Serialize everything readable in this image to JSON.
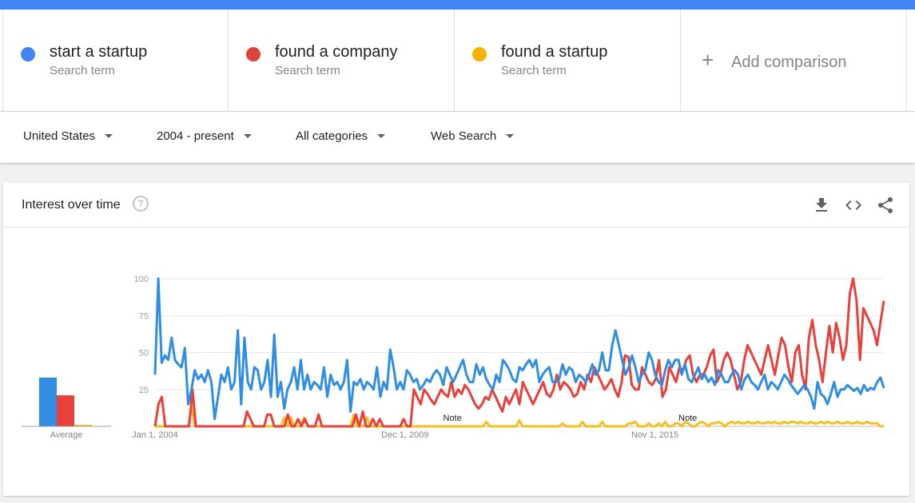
{
  "colors": {
    "blue": "#4285f4",
    "red": "#db4437",
    "yellow": "#f4b400",
    "line_blue": "#2f8de4",
    "line_red": "#e8403a",
    "line_yellow": "#f6be1e"
  },
  "terms": [
    {
      "name": "start a startup",
      "sub": "Search term",
      "color": "#4285f4"
    },
    {
      "name": "found a company",
      "sub": "Search term",
      "color": "#db4437"
    },
    {
      "name": "found a startup",
      "sub": "Search term",
      "color": "#f4b400"
    }
  ],
  "add_comparison": "Add comparison",
  "filters": {
    "region": "United States",
    "time": "2004 - present",
    "category": "All categories",
    "search_type": "Web Search"
  },
  "card": {
    "title": "Interest over time",
    "help_icon": "help-circle-icon",
    "download_icon": "download-icon",
    "embed_icon": "embed-code-icon",
    "share_icon": "share-icon"
  },
  "chart_data": {
    "type": "line",
    "y_ticks": [
      "100",
      "75",
      "50",
      "25"
    ],
    "ylim": [
      0,
      100
    ],
    "x_tick_labels": [
      "Jan 1, 2004",
      "Dec 1, 2009",
      "Nov 1, 2015"
    ],
    "notes": [
      "Note",
      "Note"
    ],
    "average_label": "Average",
    "averages": [
      {
        "name": "start a startup",
        "value": 33
      },
      {
        "name": "found a company",
        "value": 21
      },
      {
        "name": "found a startup",
        "value": 1
      }
    ],
    "series": [
      {
        "name": "start a startup",
        "values": [
          35,
          100,
          43,
          48,
          45,
          60,
          45,
          42,
          40,
          53,
          15,
          25,
          38,
          32,
          35,
          30,
          38,
          30,
          5,
          20,
          35,
          30,
          40,
          25,
          30,
          65,
          15,
          60,
          30,
          25,
          40,
          38,
          25,
          30,
          45,
          20,
          62,
          20,
          30,
          12,
          25,
          30,
          40,
          25,
          45,
          25,
          35,
          25,
          30,
          28,
          25,
          40,
          20,
          35,
          28,
          30,
          25,
          30,
          45,
          10,
          30,
          28,
          32,
          25,
          30,
          28,
          25,
          40,
          20,
          30,
          25,
          52,
          40,
          25,
          30,
          25,
          38,
          35,
          30,
          32,
          25,
          28,
          32,
          30,
          35,
          38,
          35,
          28,
          40,
          35,
          30,
          35,
          40,
          45,
          35,
          30,
          30,
          42,
          35,
          40,
          32,
          28,
          25,
          35,
          30,
          45,
          42,
          38,
          32,
          30,
          40,
          38,
          42,
          45,
          40,
          45,
          30,
          35,
          38,
          40,
          30,
          30,
          32,
          42,
          35,
          40,
          38,
          30,
          35,
          33,
          30,
          35,
          42,
          35,
          38,
          50,
          38,
          38,
          55,
          65,
          55,
          45,
          35,
          40,
          48,
          40,
          30,
          35,
          38,
          50,
          45,
          35,
          30,
          28,
          38,
          45,
          40,
          45,
          45,
          35,
          42,
          32,
          30,
          35,
          40,
          32,
          35,
          30,
          33,
          28,
          38,
          35,
          30,
          30,
          35,
          38,
          35,
          25,
          32,
          35,
          30,
          28,
          25,
          30,
          35,
          25,
          30,
          28,
          25,
          30,
          35,
          32,
          28,
          25,
          22,
          25,
          28,
          25,
          20,
          12,
          30,
          22,
          20,
          15,
          22,
          30,
          20,
          25,
          25,
          28,
          26,
          24,
          26,
          22,
          28,
          24,
          26,
          25,
          30,
          33,
          26
        ]
      },
      {
        "name": "found a company",
        "values": [
          0,
          15,
          20,
          0,
          0,
          0,
          0,
          0,
          0,
          0,
          0,
          25,
          0,
          0,
          0,
          0,
          0,
          0,
          0,
          0,
          0,
          0,
          0,
          0,
          0,
          0,
          0,
          10,
          5,
          0,
          0,
          0,
          0,
          8,
          8,
          0,
          0,
          0,
          0,
          8,
          0,
          0,
          5,
          0,
          5,
          0,
          0,
          0,
          8,
          0,
          0,
          0,
          0,
          0,
          0,
          0,
          0,
          0,
          0,
          8,
          0,
          10,
          0,
          0,
          5,
          0,
          5,
          0,
          0,
          0,
          0,
          0,
          0,
          5,
          0,
          0,
          25,
          20,
          15,
          25,
          22,
          18,
          15,
          20,
          25,
          22,
          20,
          30,
          20,
          25,
          22,
          28,
          25,
          20,
          15,
          12,
          15,
          20,
          18,
          25,
          20,
          15,
          10,
          20,
          15,
          20,
          25,
          15,
          30,
          25,
          20,
          15,
          20,
          25,
          30,
          22,
          20,
          25,
          35,
          25,
          30,
          28,
          25,
          20,
          22,
          30,
          25,
          35,
          30,
          40,
          35,
          30,
          25,
          28,
          32,
          25,
          20,
          30,
          48,
          47,
          28,
          25,
          25,
          40,
          35,
          30,
          28,
          32,
          45,
          20,
          25,
          40,
          35,
          30,
          40,
          38,
          45,
          48,
          35,
          30,
          35,
          35,
          40,
          48,
          52,
          30,
          35,
          45,
          50,
          45,
          35,
          25,
          30,
          45,
          55,
          50,
          45,
          40,
          35,
          45,
          55,
          45,
          35,
          48,
          60,
          55,
          40,
          30,
          50,
          55,
          35,
          25,
          60,
          72,
          55,
          45,
          30,
          50,
          68,
          50,
          70,
          60,
          45,
          55,
          90,
          100,
          85,
          45,
          80,
          75,
          70,
          65,
          55,
          70,
          85
        ]
      },
      {
        "name": "found a startup",
        "values": [
          0,
          0,
          0,
          0,
          0,
          0,
          0,
          0,
          0,
          0,
          0,
          13,
          0,
          0,
          0,
          0,
          0,
          0,
          0,
          0,
          0,
          0,
          0,
          0,
          0,
          0,
          0,
          0,
          0,
          0,
          0,
          0,
          0,
          0,
          0,
          0,
          0,
          0,
          0,
          6,
          0,
          6,
          0,
          0,
          0,
          6,
          0,
          0,
          0,
          0,
          0,
          0,
          0,
          0,
          0,
          0,
          0,
          0,
          0,
          0,
          8,
          0,
          0,
          0,
          6,
          0,
          0,
          0,
          0,
          0,
          0,
          0,
          0,
          0,
          0,
          0,
          0,
          0,
          0,
          0,
          0,
          0,
          0,
          0,
          0,
          0,
          0,
          0,
          0,
          0,
          0,
          0,
          0,
          0,
          0,
          0,
          0,
          0,
          0,
          0,
          3,
          0,
          0,
          0,
          0,
          0,
          0,
          0,
          0,
          0,
          4,
          0,
          0,
          0,
          0,
          0,
          0,
          0,
          0,
          0,
          0,
          0,
          0,
          2,
          0,
          0,
          0,
          0,
          0,
          3,
          0,
          0,
          0,
          0,
          0,
          3,
          0,
          0,
          0,
          0,
          0,
          0,
          0,
          2,
          2,
          3,
          0,
          0,
          0,
          2,
          0,
          0,
          2,
          0,
          3,
          0,
          0,
          2,
          2,
          0,
          3,
          2,
          0,
          0,
          2,
          3,
          2,
          0,
          2,
          2,
          3,
          2,
          0,
          2,
          3,
          2,
          3,
          2,
          2,
          3,
          2,
          2,
          3,
          2,
          2,
          3,
          2,
          3,
          2,
          2,
          3,
          2,
          3,
          3,
          2,
          3,
          2,
          2,
          3,
          2,
          2,
          3,
          2,
          3,
          2,
          2,
          3,
          2,
          2,
          3,
          2,
          2,
          3,
          2,
          2,
          3,
          2,
          2,
          2,
          0,
          0
        ]
      }
    ]
  }
}
